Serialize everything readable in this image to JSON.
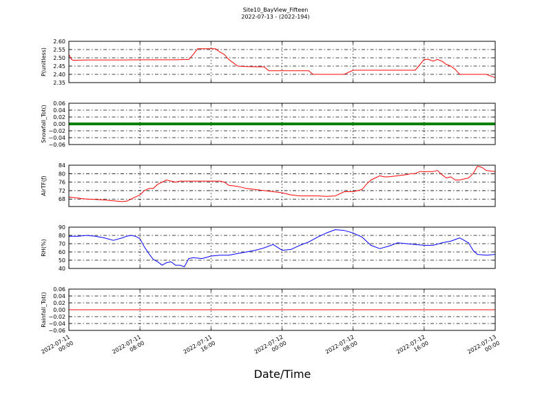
{
  "title": "Site10_BayView_Fifteen",
  "subtitle": "2022-07-13 - (2022-194)",
  "xlabel": "Date/Time",
  "x_tick_labels": [
    [
      "2022-07-11",
      "00:00"
    ],
    [
      "2022-07-11",
      "08:00"
    ],
    [
      "2022-07-11",
      "16:00"
    ],
    [
      "2022-07-12",
      "00:00"
    ],
    [
      "2022-07-12",
      "08:00"
    ],
    [
      "2022-07-12",
      "16:00"
    ],
    [
      "2022-07-13",
      "00:00"
    ]
  ],
  "chart_data": [
    {
      "type": "line",
      "ylabel": "P(unitless)",
      "ylim": [
        2.35,
        2.6
      ],
      "yticks": [
        "2.60",
        "2.55",
        "2.50",
        "2.45",
        "2.40",
        "2.35"
      ],
      "grid": true,
      "series": [
        {
          "color": "#ff0000",
          "x_hours": [
            0,
            0.3,
            0.5,
            2,
            4,
            6,
            8,
            10,
            12,
            13.5,
            14,
            14.5,
            15,
            16,
            16.5,
            17,
            17.5,
            18,
            18.5,
            19,
            20,
            22,
            22.5,
            24,
            26,
            27,
            27.5,
            28,
            30,
            31,
            32,
            33,
            34,
            36,
            38,
            39,
            40,
            40.5,
            41,
            41.5,
            42,
            42.5,
            43,
            43.5,
            44,
            46,
            47,
            48
          ],
          "values": [
            2.52,
            2.49,
            2.485,
            2.487,
            2.487,
            2.487,
            2.488,
            2.488,
            2.488,
            2.49,
            2.52,
            2.555,
            2.555,
            2.555,
            2.555,
            2.535,
            2.52,
            2.49,
            2.47,
            2.45,
            2.447,
            2.445,
            2.422,
            2.422,
            2.422,
            2.422,
            2.4,
            2.4,
            2.4,
            2.4,
            2.425,
            2.425,
            2.425,
            2.425,
            2.425,
            2.425,
            2.49,
            2.49,
            2.48,
            2.49,
            2.48,
            2.46,
            2.45,
            2.43,
            2.4,
            2.4,
            2.4,
            2.38
          ]
        }
      ]
    },
    {
      "type": "line",
      "ylabel": "Snowfall_Tot()",
      "ylim": [
        -0.06,
        0.06
      ],
      "yticks": [
        "0.06",
        "0.04",
        "0.02",
        "0.00",
        "−0.02",
        "−0.04",
        "−0.06"
      ],
      "grid": true,
      "series": [
        {
          "color": "#008000",
          "thick": true,
          "x_hours": [
            0,
            48
          ],
          "values": [
            0,
            0
          ]
        }
      ]
    },
    {
      "type": "line",
      "ylabel": "AirTF(ƒ)",
      "ylim": [
        64.5,
        84
      ],
      "yticks": [
        "84",
        "80",
        "76",
        "72",
        "68"
      ],
      "grid": true,
      "series": [
        {
          "color": "#ff0000",
          "x_hours": [
            0,
            1,
            2,
            3,
            4,
            5,
            6,
            6.5,
            7,
            7.5,
            8,
            8.5,
            9,
            9.5,
            10,
            10.5,
            11,
            11.5,
            12,
            12.5,
            13,
            14,
            15,
            16,
            17,
            17.5,
            18,
            19,
            20,
            21,
            22,
            23,
            24,
            25,
            26,
            27,
            28,
            29,
            30,
            31,
            32,
            33,
            33.5,
            34,
            34.5,
            35,
            35.5,
            36,
            37,
            38,
            38.5,
            39,
            39.5,
            40,
            41,
            41.5,
            42,
            42.5,
            43,
            43.5,
            44,
            45,
            45.5,
            46,
            46.5,
            47,
            48
          ],
          "values": [
            69,
            68.5,
            68,
            67.8,
            67.6,
            67.2,
            66.8,
            67,
            68,
            69,
            70,
            72,
            73,
            73,
            75,
            76,
            77,
            76.5,
            76,
            76.5,
            76.5,
            76.5,
            76.5,
            76.5,
            76.5,
            76,
            74.5,
            74,
            73,
            72.5,
            72,
            71.5,
            71,
            70,
            69.5,
            69.5,
            69.5,
            69.3,
            69.5,
            71.5,
            71.5,
            72.5,
            75,
            77,
            78,
            79,
            78.5,
            78.5,
            79,
            79.5,
            80,
            80,
            81,
            81,
            81,
            81.5,
            79.5,
            78,
            78.5,
            77,
            77,
            78,
            80,
            83.5,
            83,
            81.5,
            81
          ]
        }
      ]
    },
    {
      "type": "line",
      "ylabel": "RH(%)",
      "ylim": [
        40,
        90
      ],
      "yticks": [
        "90",
        "80",
        "70",
        "60",
        "50",
        "40"
      ],
      "grid": true,
      "series": [
        {
          "color": "#0000ff",
          "x_hours": [
            0,
            1,
            2,
            3,
            4,
            5,
            6,
            6.5,
            7,
            7.5,
            8,
            8.5,
            9,
            9.5,
            10,
            10.5,
            11,
            11.5,
            12,
            12.5,
            13,
            13.5,
            14,
            15,
            16,
            17,
            18,
            19,
            20,
            21,
            22,
            23,
            24,
            25,
            26,
            27,
            28,
            29,
            30,
            31,
            32,
            33,
            34,
            35,
            36,
            37,
            38,
            39,
            40,
            41,
            42,
            43,
            44,
            44.5,
            45,
            45.5,
            46,
            47,
            48
          ],
          "values": [
            79,
            79,
            80,
            79,
            77,
            74,
            77,
            79,
            80,
            79,
            76,
            66,
            58,
            51,
            48,
            44,
            47,
            48,
            44,
            44,
            42,
            52,
            53,
            52,
            55,
            56,
            56,
            58,
            60,
            62,
            65,
            69,
            62,
            63,
            68,
            72,
            78,
            83,
            87,
            86,
            83,
            78,
            68,
            64,
            67,
            71,
            70,
            69,
            68,
            68,
            71,
            73,
            77,
            74,
            71,
            62,
            57,
            56,
            57
          ]
        }
      ]
    },
    {
      "type": "line",
      "ylabel": "Rainfall_Tot()",
      "ylim": [
        -0.06,
        0.06
      ],
      "yticks": [
        "0.06",
        "0.04",
        "0.02",
        "0.00",
        "−0.02",
        "−0.04",
        "−0.06"
      ],
      "grid": true,
      "series": [
        {
          "color": "#ff0000",
          "x_hours": [
            0,
            48
          ],
          "values": [
            0,
            0
          ]
        }
      ]
    }
  ]
}
